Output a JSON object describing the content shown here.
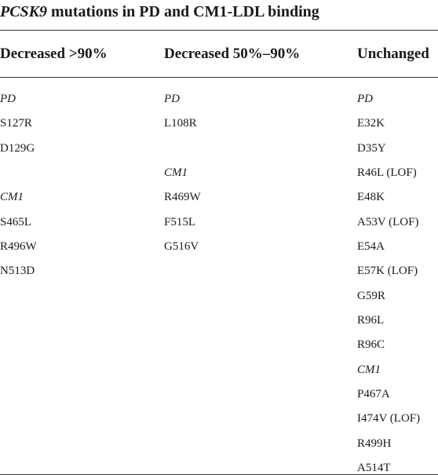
{
  "title": {
    "gene": "PCSK9",
    "rest": " mutations in PD and CM1-LDL binding"
  },
  "table": {
    "headers": [
      "Decreased >90%",
      "Decreased 50%–90%",
      "Unchanged"
    ],
    "columns": [
      [
        {
          "text": "PD",
          "group": true,
          "row": 0
        },
        {
          "text": "S127R",
          "group": false,
          "row": 1
        },
        {
          "text": "D129G",
          "group": false,
          "row": 2
        },
        {
          "text": "CM1",
          "group": true,
          "row": 4
        },
        {
          "text": "S465L",
          "group": false,
          "row": 5
        },
        {
          "text": "R496W",
          "group": false,
          "row": 6
        },
        {
          "text": "N513D",
          "group": false,
          "row": 7
        }
      ],
      [
        {
          "text": "PD",
          "group": true,
          "row": 0
        },
        {
          "text": "L108R",
          "group": false,
          "row": 1
        },
        {
          "text": "CM1",
          "group": true,
          "row": 3
        },
        {
          "text": "R469W",
          "group": false,
          "row": 4
        },
        {
          "text": "F515L",
          "group": false,
          "row": 5
        },
        {
          "text": "G516V",
          "group": false,
          "row": 6
        }
      ],
      [
        {
          "text": "PD",
          "group": true,
          "row": 0
        },
        {
          "text": "E32K",
          "group": false,
          "row": 1
        },
        {
          "text": "D35Y",
          "group": false,
          "row": 2
        },
        {
          "text": "R46L (LOF)",
          "group": false,
          "row": 3
        },
        {
          "text": "E48K",
          "group": false,
          "row": 4
        },
        {
          "text": "A53V (LOF)",
          "group": false,
          "row": 5
        },
        {
          "text": "E54A",
          "group": false,
          "row": 6
        },
        {
          "text": "E57K (LOF)",
          "group": false,
          "row": 7
        },
        {
          "text": "G59R",
          "group": false,
          "row": 8
        },
        {
          "text": "R96L",
          "group": false,
          "row": 9
        },
        {
          "text": "R96C",
          "group": false,
          "row": 10
        },
        {
          "text": "CM1",
          "group": true,
          "row": 11
        },
        {
          "text": "P467A",
          "group": false,
          "row": 12
        },
        {
          "text": "I474V (LOF)",
          "group": false,
          "row": 13
        },
        {
          "text": "R499H",
          "group": false,
          "row": 14
        },
        {
          "text": "A514T",
          "group": false,
          "row": 15
        }
      ]
    ]
  }
}
